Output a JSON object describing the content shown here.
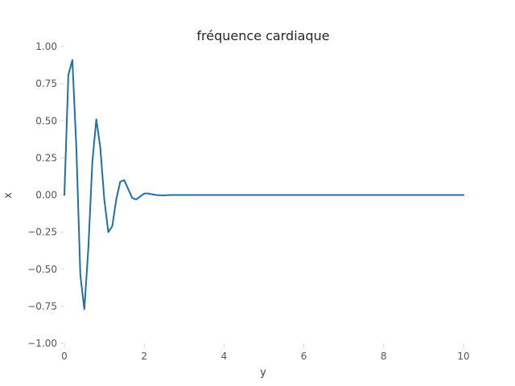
{
  "chart_data": {
    "type": "line",
    "title": "fréquence cardiaque",
    "xlabel": "y",
    "ylabel": "x",
    "xlim": [
      0,
      10
    ],
    "ylim": [
      -1.0,
      1.0
    ],
    "xticks": [
      "0",
      "2",
      "4",
      "6",
      "8",
      "10"
    ],
    "xtick_values": [
      0,
      2,
      4,
      6,
      8,
      10
    ],
    "yticks": [
      "−1.00",
      "−0.75",
      "−0.50",
      "−0.25",
      "0.00",
      "0.25",
      "0.50",
      "0.75",
      "1.00"
    ],
    "ytick_values": [
      -1.0,
      -0.75,
      -0.5,
      -0.25,
      0.0,
      0.25,
      0.5,
      0.75,
      1.0
    ],
    "grid": false,
    "series": [
      {
        "color": "#1f6fa8",
        "x": [
          0,
          0.1,
          0.2,
          0.3,
          0.4,
          0.5,
          0.6,
          0.7,
          0.8,
          0.9,
          1.0,
          1.1,
          1.2,
          1.3,
          1.4,
          1.5,
          1.6,
          1.7,
          1.8,
          1.9,
          2.0,
          2.1,
          2.2,
          2.3,
          2.4,
          2.5,
          2.6,
          2.7,
          2.8,
          3.0,
          4.0,
          5.0,
          6.0,
          7.0,
          8.0,
          9.0,
          10.0
        ],
        "y": [
          0.0,
          0.81,
          0.91,
          0.32,
          -0.54,
          -0.77,
          -0.36,
          0.22,
          0.51,
          0.32,
          -0.03,
          -0.25,
          -0.21,
          -0.03,
          0.09,
          0.1,
          0.04,
          -0.02,
          -0.03,
          -0.01,
          0.01,
          0.01,
          0.005,
          0.0,
          -0.002,
          -0.002,
          -0.001,
          0.0,
          0.0,
          0.0,
          0.0,
          0.0,
          0.0,
          0.0,
          0.0,
          0.0,
          0.0
        ]
      }
    ]
  }
}
